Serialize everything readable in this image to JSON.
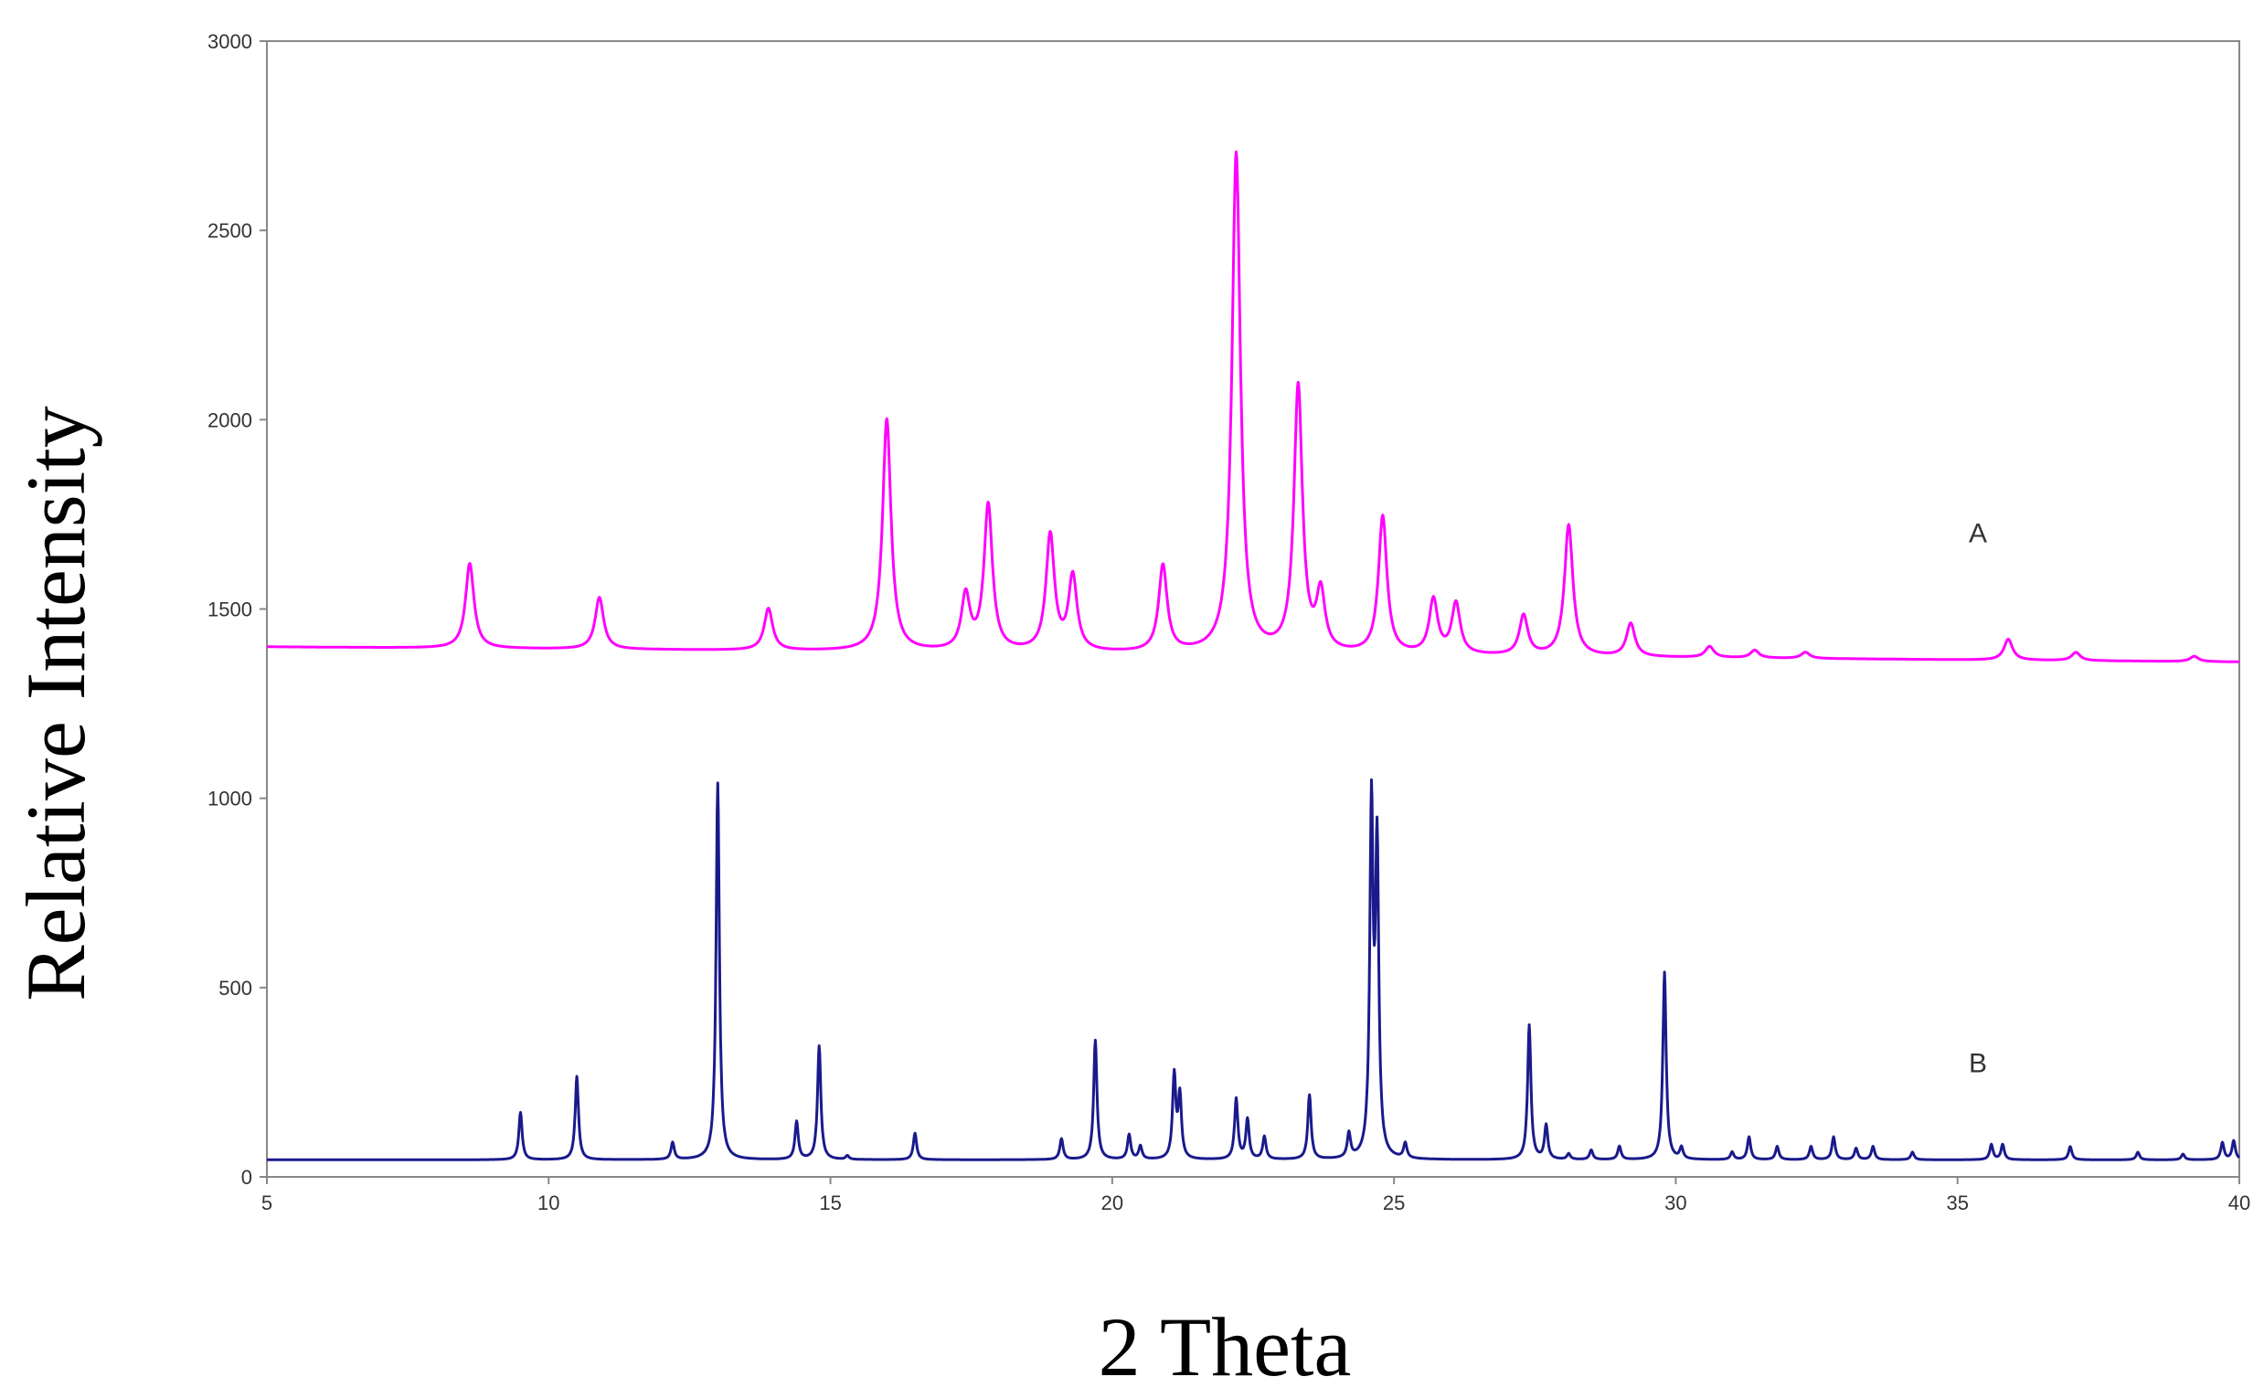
{
  "chart_data": {
    "type": "line",
    "title": "",
    "xlabel": "2 Theta",
    "ylabel": "Relative Intensity",
    "xlim": [
      5,
      40
    ],
    "ylim": [
      0,
      3000
    ],
    "grid": false,
    "legend": "none",
    "x_ticks": [
      5,
      10,
      15,
      20,
      25,
      30,
      35,
      40
    ],
    "y_ticks": [
      0,
      500,
      1000,
      1500,
      2000,
      2500,
      3000
    ],
    "series": [
      {
        "label": "A",
        "color": "#ff00ff",
        "baseline_start": 1400,
        "baseline_end": 1360,
        "peaks": [
          {
            "x": 8.6,
            "y": 1620
          },
          {
            "x": 10.9,
            "y": 1530
          },
          {
            "x": 13.9,
            "y": 1500
          },
          {
            "x": 16.0,
            "y": 2000
          },
          {
            "x": 17.4,
            "y": 1530
          },
          {
            "x": 17.8,
            "y": 1770
          },
          {
            "x": 18.9,
            "y": 1690
          },
          {
            "x": 19.3,
            "y": 1580
          },
          {
            "x": 20.9,
            "y": 1610
          },
          {
            "x": 22.2,
            "y": 2700
          },
          {
            "x": 23.3,
            "y": 2080
          },
          {
            "x": 23.7,
            "y": 1530
          },
          {
            "x": 24.8,
            "y": 1740
          },
          {
            "x": 25.7,
            "y": 1520
          },
          {
            "x": 26.1,
            "y": 1510
          },
          {
            "x": 27.3,
            "y": 1480
          },
          {
            "x": 28.1,
            "y": 1720
          },
          {
            "x": 29.2,
            "y": 1460
          },
          {
            "x": 30.6,
            "y": 1400
          },
          {
            "x": 31.4,
            "y": 1390
          },
          {
            "x": 32.3,
            "y": 1385
          },
          {
            "x": 35.9,
            "y": 1420
          },
          {
            "x": 37.1,
            "y": 1385
          },
          {
            "x": 39.2,
            "y": 1375
          }
        ]
      },
      {
        "label": "B",
        "color": "#1a1a8c",
        "baseline_start": 45,
        "baseline_end": 45,
        "peaks": [
          {
            "x": 9.5,
            "y": 170
          },
          {
            "x": 10.5,
            "y": 265
          },
          {
            "x": 12.2,
            "y": 90
          },
          {
            "x": 13.0,
            "y": 1040
          },
          {
            "x": 14.4,
            "y": 145
          },
          {
            "x": 14.8,
            "y": 345
          },
          {
            "x": 15.3,
            "y": 55
          },
          {
            "x": 16.5,
            "y": 115
          },
          {
            "x": 19.1,
            "y": 100
          },
          {
            "x": 19.7,
            "y": 360
          },
          {
            "x": 20.3,
            "y": 110
          },
          {
            "x": 20.5,
            "y": 80
          },
          {
            "x": 21.1,
            "y": 265
          },
          {
            "x": 21.2,
            "y": 210
          },
          {
            "x": 22.2,
            "y": 205
          },
          {
            "x": 22.4,
            "y": 150
          },
          {
            "x": 22.7,
            "y": 105
          },
          {
            "x": 23.5,
            "y": 215
          },
          {
            "x": 24.2,
            "y": 110
          },
          {
            "x": 24.6,
            "y": 960
          },
          {
            "x": 24.7,
            "y": 850
          },
          {
            "x": 25.2,
            "y": 85
          },
          {
            "x": 27.4,
            "y": 400
          },
          {
            "x": 27.7,
            "y": 135
          },
          {
            "x": 28.1,
            "y": 60
          },
          {
            "x": 28.5,
            "y": 70
          },
          {
            "x": 29.0,
            "y": 80
          },
          {
            "x": 29.8,
            "y": 540
          },
          {
            "x": 30.1,
            "y": 75
          },
          {
            "x": 31.0,
            "y": 65
          },
          {
            "x": 31.3,
            "y": 105
          },
          {
            "x": 31.8,
            "y": 80
          },
          {
            "x": 32.4,
            "y": 80
          },
          {
            "x": 32.8,
            "y": 105
          },
          {
            "x": 33.2,
            "y": 75
          },
          {
            "x": 33.5,
            "y": 80
          },
          {
            "x": 34.2,
            "y": 65
          },
          {
            "x": 35.6,
            "y": 85
          },
          {
            "x": 35.8,
            "y": 85
          },
          {
            "x": 37.0,
            "y": 80
          },
          {
            "x": 38.2,
            "y": 65
          },
          {
            "x": 39.0,
            "y": 60
          },
          {
            "x": 39.7,
            "y": 90
          },
          {
            "x": 39.9,
            "y": 95
          }
        ]
      }
    ]
  }
}
